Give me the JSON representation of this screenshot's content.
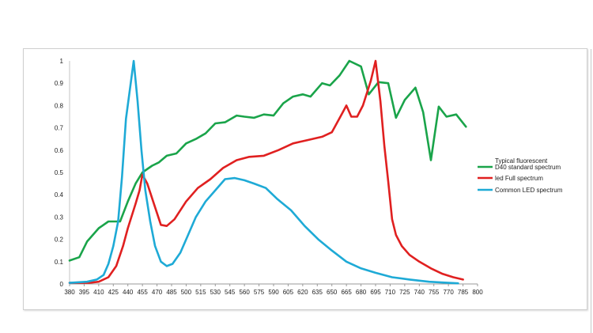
{
  "chart_data": {
    "type": "line",
    "title": "",
    "xlabel": "",
    "ylabel": "",
    "x_ticks": [
      380,
      395,
      410,
      425,
      440,
      455,
      470,
      485,
      500,
      515,
      530,
      545,
      560,
      575,
      590,
      605,
      620,
      635,
      650,
      665,
      680,
      695,
      710,
      725,
      740,
      755,
      770,
      785,
      800
    ],
    "y_ticks": [
      0,
      0.1,
      0.2,
      0.3,
      0.4,
      0.5,
      0.6,
      0.7,
      0.8,
      0.9,
      1
    ],
    "xlim": [
      380,
      800
    ],
    "ylim": [
      0,
      1
    ],
    "grid": false,
    "legend_position": "right",
    "legend_header": "Typical fluorescent",
    "series": [
      {
        "name": "D40 standard spectrum",
        "color": "#1aa44a",
        "points": [
          [
            380,
            0.105
          ],
          [
            390,
            0.12
          ],
          [
            398,
            0.19
          ],
          [
            410,
            0.25
          ],
          [
            420,
            0.28
          ],
          [
            425,
            0.28
          ],
          [
            432,
            0.28
          ],
          [
            440,
            0.37
          ],
          [
            448,
            0.45
          ],
          [
            455,
            0.5
          ],
          [
            465,
            0.53
          ],
          [
            472,
            0.545
          ],
          [
            480,
            0.575
          ],
          [
            490,
            0.585
          ],
          [
            500,
            0.63
          ],
          [
            510,
            0.65
          ],
          [
            520,
            0.675
          ],
          [
            530,
            0.72
          ],
          [
            540,
            0.725
          ],
          [
            552,
            0.755
          ],
          [
            560,
            0.75
          ],
          [
            570,
            0.745
          ],
          [
            580,
            0.76
          ],
          [
            590,
            0.755
          ],
          [
            600,
            0.81
          ],
          [
            610,
            0.84
          ],
          [
            620,
            0.85
          ],
          [
            628,
            0.84
          ],
          [
            640,
            0.9
          ],
          [
            648,
            0.89
          ],
          [
            658,
            0.935
          ],
          [
            668,
            1.0
          ],
          [
            680,
            0.975
          ],
          [
            688,
            0.85
          ],
          [
            698,
            0.905
          ],
          [
            708,
            0.9
          ],
          [
            716,
            0.745
          ],
          [
            725,
            0.825
          ],
          [
            736,
            0.88
          ],
          [
            744,
            0.77
          ],
          [
            752,
            0.555
          ],
          [
            760,
            0.795
          ],
          [
            768,
            0.75
          ],
          [
            778,
            0.76
          ],
          [
            788,
            0.705
          ]
        ]
      },
      {
        "name": "led Full spectrum",
        "color": "#e02020",
        "points": [
          [
            380,
            0.005
          ],
          [
            400,
            0.005
          ],
          [
            410,
            0.01
          ],
          [
            420,
            0.03
          ],
          [
            428,
            0.08
          ],
          [
            435,
            0.17
          ],
          [
            440,
            0.25
          ],
          [
            448,
            0.36
          ],
          [
            452,
            0.42
          ],
          [
            455,
            0.49
          ],
          [
            460,
            0.45
          ],
          [
            466,
            0.37
          ],
          [
            474,
            0.265
          ],
          [
            480,
            0.26
          ],
          [
            488,
            0.29
          ],
          [
            500,
            0.37
          ],
          [
            512,
            0.43
          ],
          [
            525,
            0.47
          ],
          [
            538,
            0.52
          ],
          [
            552,
            0.555
          ],
          [
            565,
            0.57
          ],
          [
            580,
            0.575
          ],
          [
            595,
            0.6
          ],
          [
            610,
            0.63
          ],
          [
            625,
            0.645
          ],
          [
            640,
            0.66
          ],
          [
            650,
            0.68
          ],
          [
            660,
            0.76
          ],
          [
            665,
            0.8
          ],
          [
            670,
            0.75
          ],
          [
            676,
            0.75
          ],
          [
            682,
            0.8
          ],
          [
            690,
            0.91
          ],
          [
            695,
            1.0
          ],
          [
            700,
            0.82
          ],
          [
            704,
            0.62
          ],
          [
            708,
            0.46
          ],
          [
            712,
            0.29
          ],
          [
            716,
            0.22
          ],
          [
            722,
            0.17
          ],
          [
            730,
            0.13
          ],
          [
            740,
            0.1
          ],
          [
            752,
            0.07
          ],
          [
            764,
            0.045
          ],
          [
            775,
            0.03
          ],
          [
            785,
            0.02
          ]
        ]
      },
      {
        "name": "Common LED spectrum",
        "color": "#1eaad6",
        "points": [
          [
            380,
            0.005
          ],
          [
            398,
            0.01
          ],
          [
            408,
            0.02
          ],
          [
            415,
            0.04
          ],
          [
            420,
            0.09
          ],
          [
            425,
            0.17
          ],
          [
            430,
            0.28
          ],
          [
            434,
            0.48
          ],
          [
            438,
            0.74
          ],
          [
            446,
            1.0
          ],
          [
            450,
            0.82
          ],
          [
            454,
            0.6
          ],
          [
            458,
            0.42
          ],
          [
            463,
            0.28
          ],
          [
            468,
            0.17
          ],
          [
            474,
            0.1
          ],
          [
            480,
            0.08
          ],
          [
            486,
            0.09
          ],
          [
            494,
            0.14
          ],
          [
            502,
            0.22
          ],
          [
            510,
            0.3
          ],
          [
            520,
            0.37
          ],
          [
            530,
            0.42
          ],
          [
            540,
            0.47
          ],
          [
            550,
            0.475
          ],
          [
            560,
            0.465
          ],
          [
            570,
            0.45
          ],
          [
            582,
            0.43
          ],
          [
            594,
            0.38
          ],
          [
            608,
            0.33
          ],
          [
            622,
            0.26
          ],
          [
            636,
            0.2
          ],
          [
            650,
            0.15
          ],
          [
            665,
            0.1
          ],
          [
            680,
            0.07
          ],
          [
            695,
            0.05
          ],
          [
            712,
            0.03
          ],
          [
            730,
            0.02
          ],
          [
            750,
            0.01
          ],
          [
            770,
            0.005
          ],
          [
            780,
            0.003
          ]
        ]
      }
    ]
  }
}
